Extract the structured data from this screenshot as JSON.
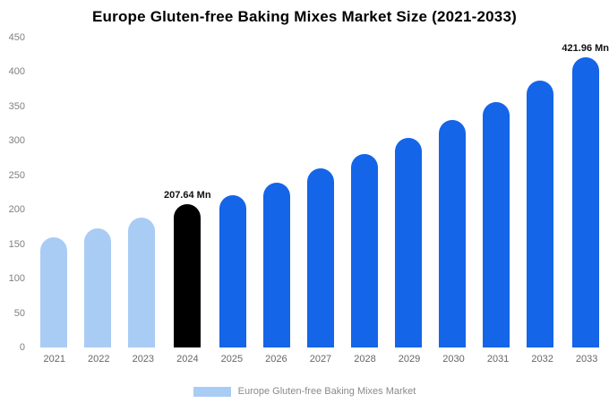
{
  "title": "Europe Gluten-free Baking Mixes Market Size (2021-2033)",
  "legend": {
    "label": "Europe Gluten-free Baking Mixes Market",
    "swatch_color": "#a9ccf4"
  },
  "colors": {
    "light_blue": "#a9ccf4",
    "primary_blue": "#1465e8",
    "highlight_black": "#000000",
    "axis_text": "#808080"
  },
  "chart_data": {
    "type": "bar",
    "title": "Europe Gluten-free Baking Mixes Market Size (2021-2033)",
    "categories": [
      "2021",
      "2022",
      "2023",
      "2024",
      "2025",
      "2026",
      "2027",
      "2028",
      "2029",
      "2030",
      "2031",
      "2032",
      "2033"
    ],
    "values": [
      160,
      173,
      189,
      207.64,
      221,
      239,
      260,
      281,
      304,
      330,
      356,
      388,
      421.96
    ],
    "bar_colors": [
      "#a9ccf4",
      "#a9ccf4",
      "#a9ccf4",
      "#000000",
      "#1465e8",
      "#1465e8",
      "#1465e8",
      "#1465e8",
      "#1465e8",
      "#1465e8",
      "#1465e8",
      "#1465e8",
      "#1465e8"
    ],
    "annotations": [
      {
        "category": "2024",
        "text": "207.64 Mn"
      },
      {
        "category": "2033",
        "text": "421.96 Mn"
      }
    ],
    "xlabel": "",
    "ylabel": "",
    "ylim": [
      0,
      450
    ],
    "yticks": [
      0,
      50,
      100,
      150,
      200,
      250,
      300,
      350,
      400,
      450
    ],
    "grid": false,
    "legend_position": "bottom",
    "legend_entries": [
      "Europe Gluten-free Baking Mixes Market"
    ]
  }
}
